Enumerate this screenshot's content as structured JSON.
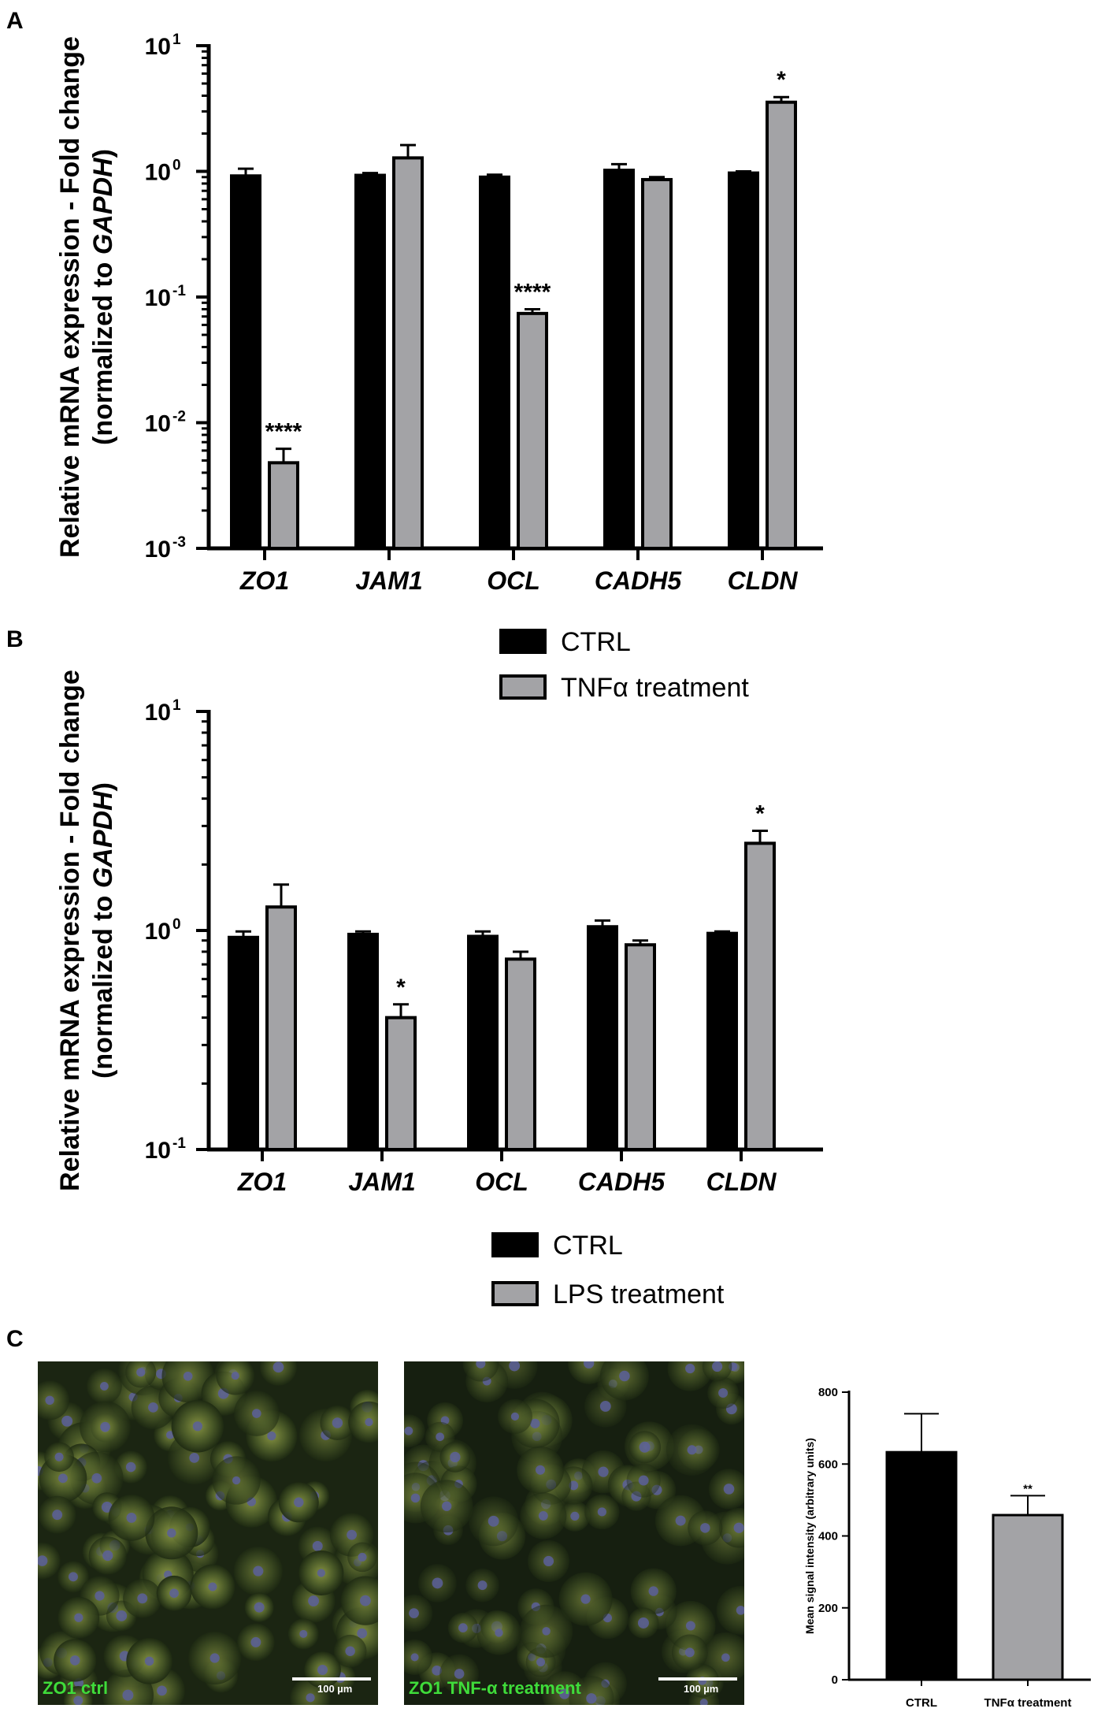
{
  "panel_labels": {
    "a": "A",
    "b": "B",
    "c": "C"
  },
  "chart_data": [
    {
      "type": "bar",
      "panel": "A",
      "yscale": "log",
      "ylim": [
        0.001,
        10
      ],
      "yticks": [
        "10",
        "10",
        "10",
        "10",
        "10"
      ],
      "ytick_exponents": [
        "1",
        "0",
        "-1",
        "-2",
        "-3"
      ],
      "ytick_values": [
        10,
        1,
        0.1,
        0.01,
        0.001
      ],
      "ylabel_line1": "Relative mRNA expression - Fold change",
      "ylabel_line2_prefix": "(normalized to ",
      "ylabel_line2_gene": "GAPDH",
      "ylabel_line2_suffix": ")",
      "categories": [
        "ZO1",
        "JAM1",
        "OCL",
        "CADH5",
        "CLDN"
      ],
      "series": [
        {
          "name": "CTRL",
          "color": "#000000",
          "values": [
            0.92,
            0.93,
            0.9,
            1.02,
            0.97
          ],
          "errors": [
            1.05,
            0.97,
            0.94,
            1.14,
            1.0
          ]
        },
        {
          "name": "TNFα treatment",
          "color": "#a3a3a6",
          "values": [
            0.0048,
            1.28,
            0.074,
            0.86,
            3.55
          ],
          "errors": [
            0.0062,
            1.62,
            0.08,
            0.9,
            3.9
          ]
        }
      ],
      "significance": [
        {
          "category": 0,
          "series": 1,
          "label": "****"
        },
        {
          "category": 2,
          "series": 1,
          "label": "****"
        },
        {
          "category": 4,
          "series": 1,
          "label": "*"
        }
      ],
      "legend": [
        "CTRL",
        "TNFα treatment"
      ]
    },
    {
      "type": "bar",
      "panel": "B",
      "yscale": "log",
      "ylim": [
        0.1,
        10
      ],
      "yticks": [
        "10",
        "10",
        "10"
      ],
      "ytick_exponents": [
        "1",
        "0",
        "-1"
      ],
      "ytick_values": [
        10,
        1,
        0.1
      ],
      "ylabel_line1": "Relative mRNA expression - Fold change",
      "ylabel_line2_prefix": "(normalized to ",
      "ylabel_line2_gene": "GAPDH",
      "ylabel_line2_suffix": ")",
      "categories": [
        "ZO1",
        "JAM1",
        "OCL",
        "CADH5",
        "CLDN"
      ],
      "series": [
        {
          "name": "CTRL",
          "color": "#000000",
          "values": [
            0.93,
            0.96,
            0.94,
            1.04,
            0.97
          ],
          "errors": [
            0.99,
            0.99,
            0.99,
            1.11,
            0.99
          ]
        },
        {
          "name": "LPS treatment",
          "color": "#a3a3a6",
          "values": [
            1.28,
            0.4,
            0.74,
            0.86,
            2.5
          ],
          "errors": [
            1.62,
            0.46,
            0.8,
            0.9,
            2.85
          ]
        }
      ],
      "significance": [
        {
          "category": 1,
          "series": 1,
          "label": "*"
        },
        {
          "category": 4,
          "series": 1,
          "label": "*"
        }
      ],
      "legend": [
        "CTRL",
        "LPS treatment"
      ]
    },
    {
      "type": "bar",
      "panel": "C",
      "yscale": "linear",
      "ylim": [
        0,
        800
      ],
      "yticks": [
        "0",
        "200",
        "400",
        "600",
        "800"
      ],
      "ytick_values": [
        0,
        200,
        400,
        600,
        800
      ],
      "ylabel": "Mean signal intensity (arbitrary units)",
      "categories": [
        "CTRL",
        "TNFα treatment"
      ],
      "colors": [
        "#000000",
        "#a3a3a6"
      ],
      "values": [
        633,
        458
      ],
      "errors": [
        740,
        512
      ],
      "significance": [
        {
          "category": 1,
          "label": "**"
        }
      ]
    }
  ],
  "micrographs": [
    {
      "caption": "ZO1 ctrl",
      "scale": "100 µm"
    },
    {
      "caption": "ZO1 TNF-α treatment",
      "scale": "100 µm"
    }
  ]
}
